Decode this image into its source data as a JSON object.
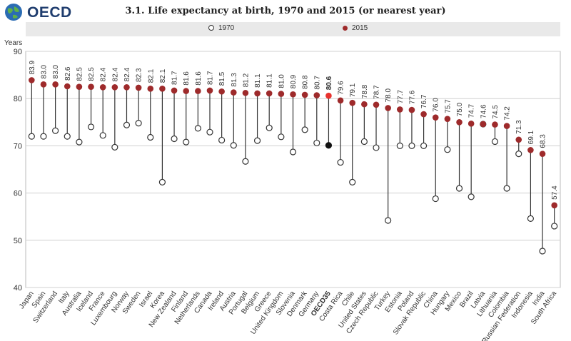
{
  "header": {
    "logo_text": "OECD",
    "title": "3.1. Life expectancy at birth, 1970 and 2015 (or nearest year)"
  },
  "legend": {
    "items": [
      {
        "label": "1970",
        "color": "#ffffff",
        "stroke": "#333333"
      },
      {
        "label": "2015",
        "color": "#9e2a2b",
        "stroke": "#9e2a2b"
      }
    ]
  },
  "chart_data": {
    "type": "dot",
    "title": "3.1. Life expectancy at birth, 1970 and 2015 (or nearest year)",
    "ylabel": "Years",
    "ylim": [
      40,
      90
    ],
    "yticks": [
      40,
      50,
      60,
      70,
      80,
      90
    ],
    "grid": true,
    "legend_position": "top",
    "highlight_category": "OECD35",
    "categories": [
      "Japan",
      "Spain",
      "Switzerland",
      "Italy",
      "Australia",
      "Iceland",
      "France",
      "Luxembourg",
      "Norway",
      "Sweden",
      "Israel",
      "Korea",
      "New Zealand",
      "Finland",
      "Netherlands",
      "Canada",
      "Ireland",
      "Austria",
      "Portugal",
      "Belgium",
      "Greece",
      "United Kingdom",
      "Slovenia",
      "Denmark",
      "Germany",
      "OECD35",
      "Costa Rica",
      "Chile",
      "United States",
      "Czech Republic",
      "Turkey",
      "Estonia",
      "Poland",
      "Slovak Republic",
      "China",
      "Hungary",
      "Mexico",
      "Brazil",
      "Latvia",
      "Lithuania",
      "Colombia",
      "Russian Federation",
      "Indonesia",
      "India",
      "South Africa"
    ],
    "series": [
      {
        "name": "1970",
        "values": [
          72.0,
          72.0,
          73.2,
          72.0,
          70.8,
          74.0,
          72.2,
          69.7,
          74.4,
          74.8,
          71.8,
          62.3,
          71.5,
          70.8,
          73.7,
          72.9,
          71.2,
          70.1,
          66.7,
          71.1,
          73.8,
          71.9,
          68.7,
          73.4,
          70.6,
          70.1,
          66.5,
          62.3,
          70.9,
          69.6,
          54.2,
          70.0,
          70.0,
          70.0,
          58.8,
          69.2,
          61.0,
          59.2,
          74.6,
          70.9,
          61.0,
          68.3,
          54.6,
          47.7,
          53.0
        ]
      },
      {
        "name": "2015",
        "values": [
          83.9,
          83.0,
          83.0,
          82.6,
          82.5,
          82.5,
          82.4,
          82.4,
          82.4,
          82.3,
          82.1,
          82.1,
          81.7,
          81.6,
          81.6,
          81.7,
          81.5,
          81.3,
          81.2,
          81.1,
          81.1,
          81.0,
          80.9,
          80.8,
          80.7,
          80.6,
          79.6,
          79.1,
          78.8,
          78.7,
          78.0,
          77.7,
          77.6,
          76.7,
          76.0,
          75.7,
          75.0,
          74.7,
          74.6,
          74.5,
          74.2,
          71.3,
          69.1,
          68.3,
          57.4
        ]
      }
    ],
    "data_labels": [
      "83.9",
      "83.0",
      "83.0",
      "82.6",
      "82.5",
      "82.5",
      "82.4",
      "82.4",
      "82.4",
      "82.3",
      "82.1",
      "82.1",
      "81.7",
      "81.6",
      "81.6",
      "81.7",
      "81.5",
      "81.3",
      "81.2",
      "81.1",
      "81.1",
      "81.0",
      "80.9",
      "80.8",
      "80.7",
      "80.6",
      "79.6",
      "79.1",
      "78.8",
      "78.7",
      "78.0",
      "77.7",
      "77.6",
      "76.7",
      "76.0",
      "75.7",
      "75.0",
      "74.7",
      "74.6",
      "74.5",
      "74.2",
      "71.3",
      "69.1",
      "68.3",
      "57.4"
    ],
    "colors": {
      "1970_fill": "#ffffff",
      "1970_stroke": "#333333",
      "2015": "#9e2a2b",
      "highlight_2015": "#e8322e",
      "highlight_1970": "#111111",
      "grid": "#d0d0d0",
      "stem": "#333333"
    }
  }
}
